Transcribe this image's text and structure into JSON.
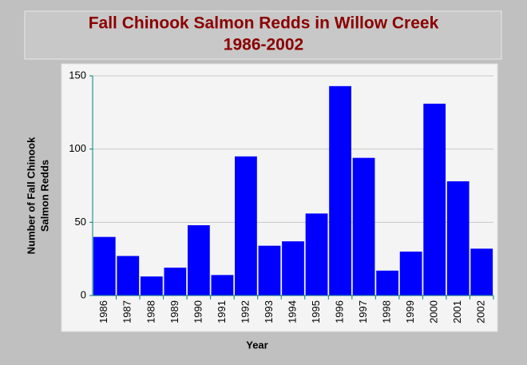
{
  "chart_data": {
    "type": "bar",
    "title": "Fall Chinook Salmon Redds in Willow Creek",
    "subtitle": "1986-2002",
    "xlabel": "Year",
    "ylabel": [
      "Number of Fall Chinook",
      "Salmon Redds"
    ],
    "categories": [
      "1986",
      "1987",
      "1988",
      "1989",
      "1990",
      "1991",
      "1992",
      "1993",
      "1994",
      "1995",
      "1996",
      "1997",
      "1998",
      "1999",
      "2000",
      "2001",
      "2002"
    ],
    "values": [
      40,
      27,
      13,
      19,
      48,
      14,
      95,
      34,
      37,
      56,
      143,
      94,
      17,
      30,
      131,
      78,
      32
    ],
    "color": "#0000ff",
    "ylim": [
      0,
      150
    ],
    "yticks": [
      0,
      50,
      100,
      150
    ],
    "grid": true
  }
}
